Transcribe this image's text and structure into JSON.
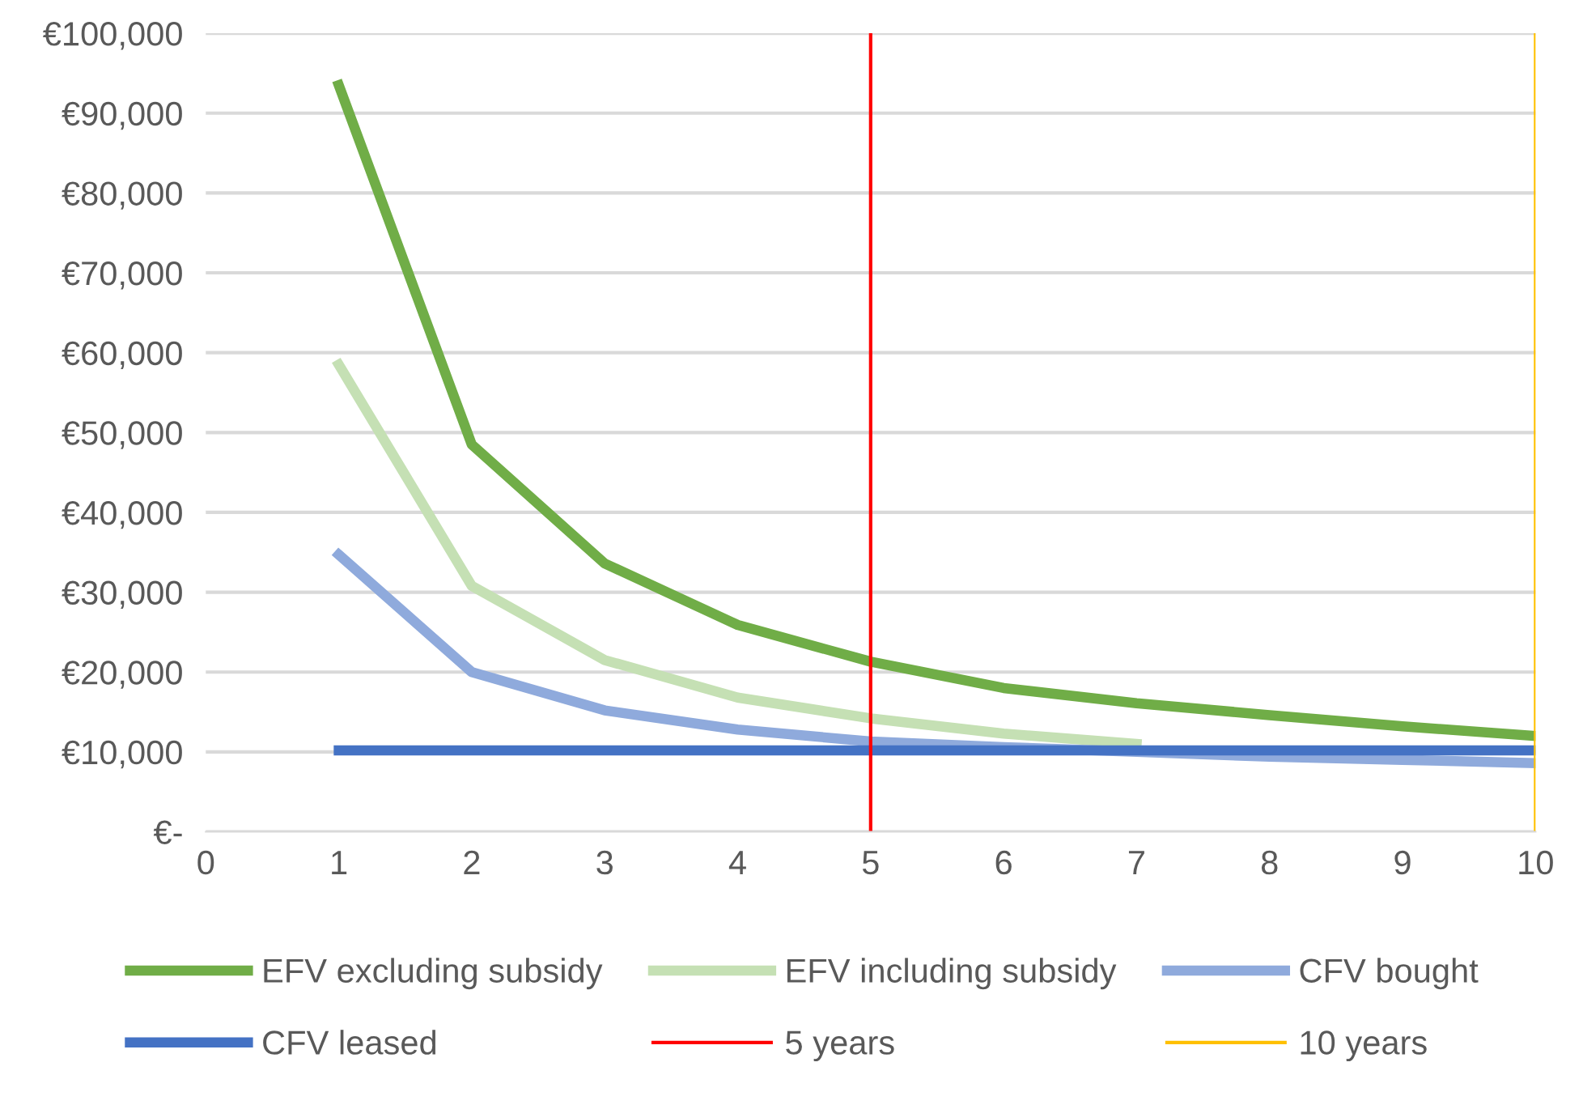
{
  "chart_data": {
    "type": "line",
    "x": [
      1,
      2,
      3,
      4,
      5,
      6,
      7,
      8,
      9,
      10
    ],
    "series": [
      {
        "name": "EFV excluding subsidy",
        "color": "#70ad47",
        "values": [
          93500,
          48500,
          33600,
          25900,
          21300,
          18000,
          16100,
          14600,
          13200,
          12000
        ]
      },
      {
        "name": "EFV including subsidy",
        "color": "#c5e0b4",
        "values": [
          58500,
          30800,
          21500,
          16800,
          14200,
          12300,
          11000,
          null,
          null,
          null
        ]
      },
      {
        "name": "CFV bought",
        "color": "#8faadc",
        "values": [
          34700,
          20000,
          15200,
          12800,
          11300,
          10600,
          10000,
          9400,
          9000,
          8600
        ]
      },
      {
        "name": "CFV leased",
        "color": "#4472c4",
        "values": [
          10200,
          10200,
          10200,
          10200,
          10200,
          10200,
          10200,
          10200,
          10200,
          10200
        ]
      }
    ],
    "ref_lines": [
      {
        "axis": "x",
        "value": 5,
        "label": "5 years",
        "color": "#ff0000"
      },
      {
        "axis": "x",
        "value": 10,
        "label": "10 years",
        "color": "#ffc000"
      }
    ],
    "xlim": [
      0,
      10
    ],
    "xticks": [
      0,
      1,
      2,
      3,
      4,
      5,
      6,
      7,
      8,
      9,
      10
    ],
    "ylim": [
      0,
      100000
    ],
    "yticks": [
      {
        "value": 0,
        "label": "€-"
      },
      {
        "value": 10000,
        "label": "€10,000"
      },
      {
        "value": 20000,
        "label": "€20,000"
      },
      {
        "value": 30000,
        "label": "€30,000"
      },
      {
        "value": 40000,
        "label": "€40,000"
      },
      {
        "value": 50000,
        "label": "€50,000"
      },
      {
        "value": 60000,
        "label": "€60,000"
      },
      {
        "value": 70000,
        "label": "€70,000"
      },
      {
        "value": 80000,
        "label": "€80,000"
      },
      {
        "value": 90000,
        "label": "€90,000"
      },
      {
        "value": 100000,
        "label": "€100,000"
      }
    ],
    "grid": "y",
    "legend": "bottom",
    "marker": "none",
    "line_style": "solid"
  }
}
